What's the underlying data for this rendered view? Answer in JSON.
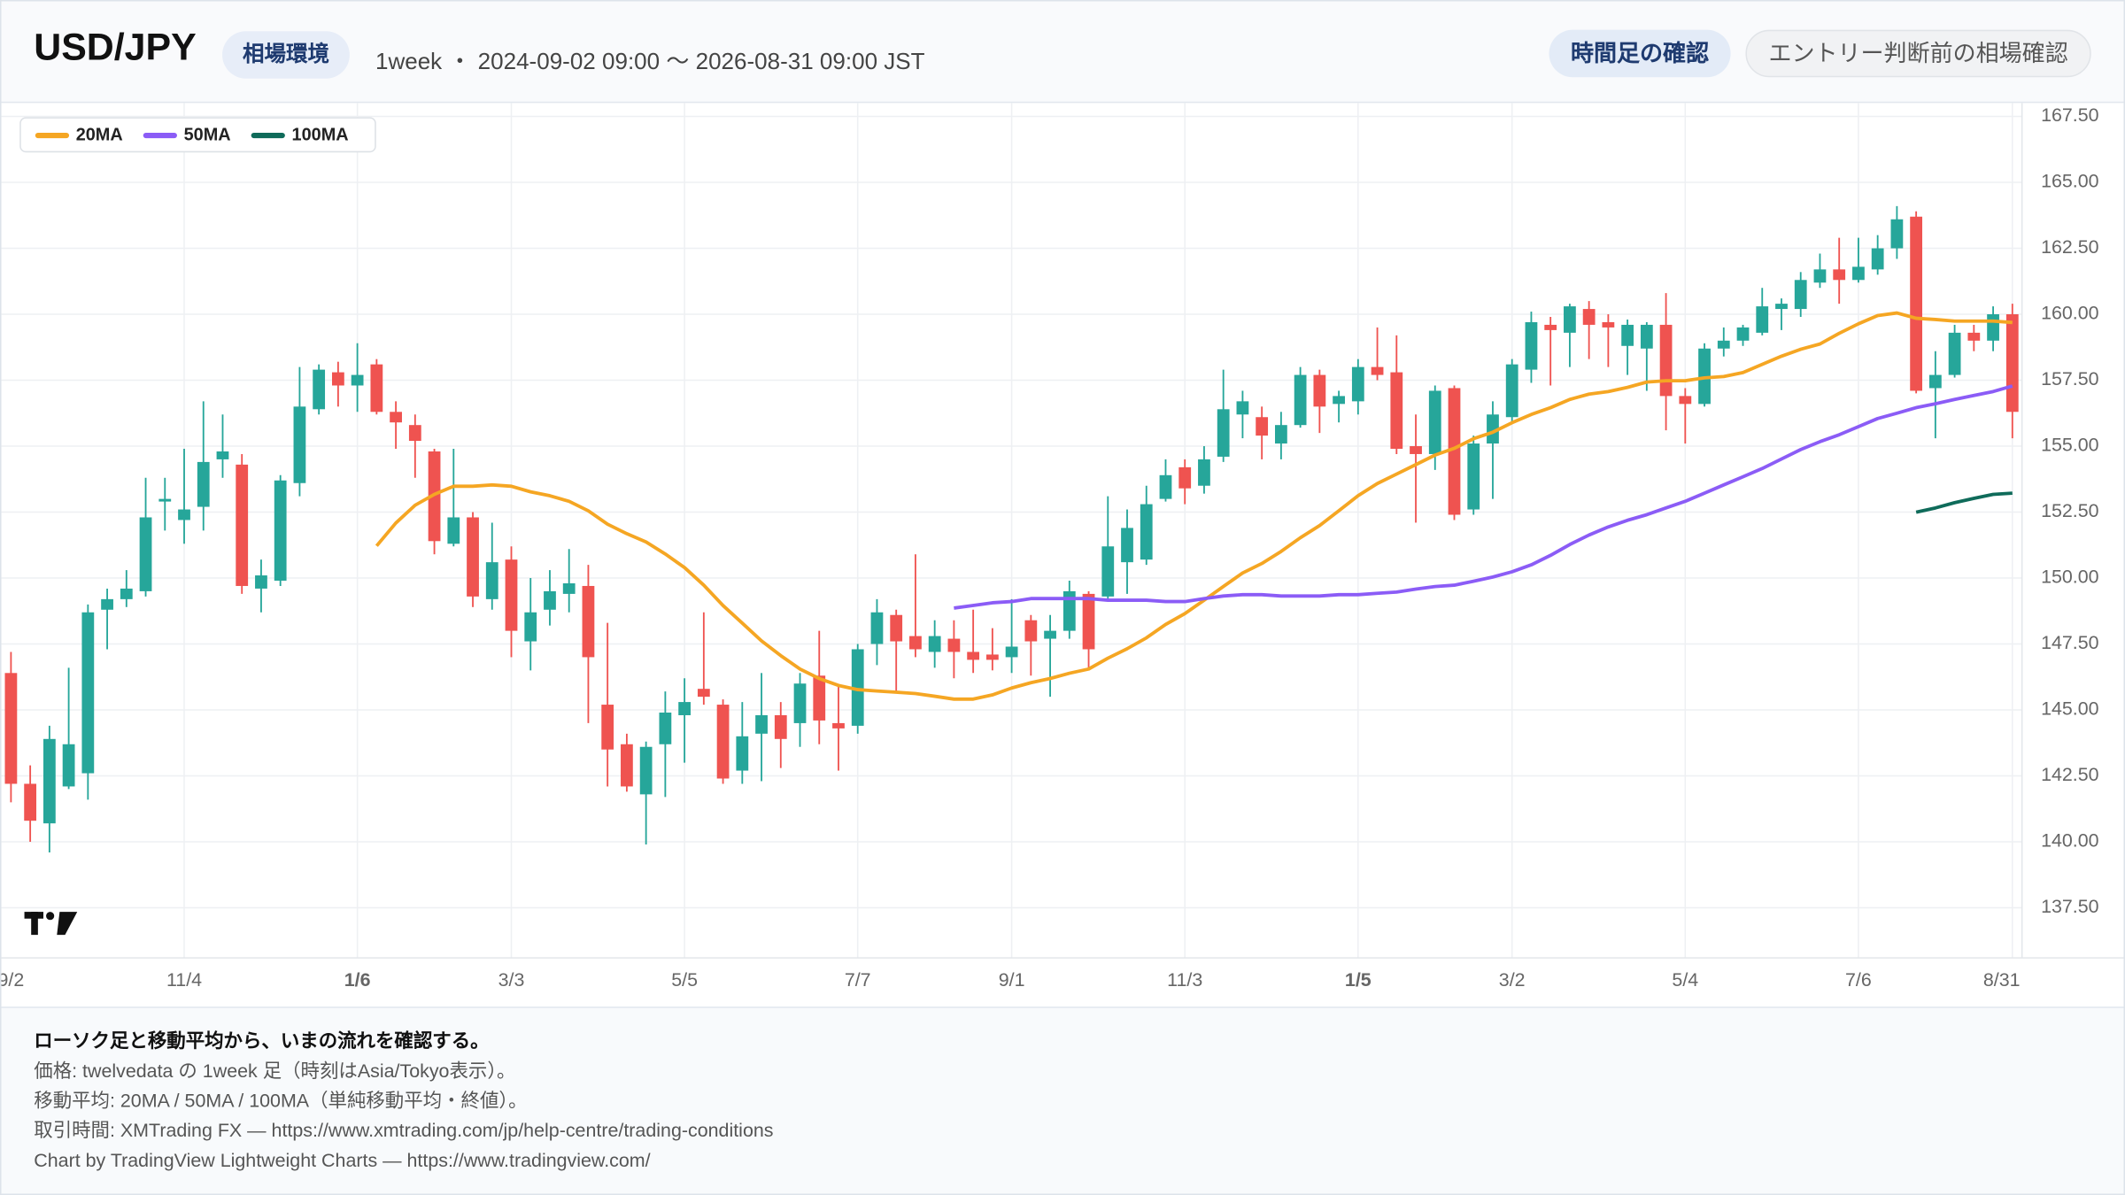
{
  "header": {
    "title": "USD/JPY",
    "badge": "相場環境",
    "range": "1week ・ 2024-09-02 09:00 〜 2026-08-31 09:00 JST",
    "buttons": [
      "時間足の確認",
      "エントリー判断前の相場確認"
    ]
  },
  "footer": {
    "lines": [
      "ローソク足と移動平均から、いまの流れを確認する。",
      "価格: twelvedata の 1week 足（時刻はAsia/Tokyo表示）。",
      "移動平均: 20MA / 50MA / 100MA（単純移動平均・終値）。",
      "取引時間: XMTrading FX — https://www.xmtrading.com/jp/help-centre/trading-conditions",
      "Chart by TradingView Lightweight Charts — https://www.tradingview.com/"
    ]
  },
  "chart_data": {
    "type": "candlestick",
    "up_color": "#26a69a",
    "down_color": "#ef5350",
    "grid": true,
    "categories": [
      "9/2",
      null,
      null,
      null,
      null,
      null,
      null,
      null,
      null,
      "11/4",
      null,
      null,
      null,
      null,
      null,
      null,
      null,
      null,
      "1/6",
      null,
      null,
      null,
      null,
      null,
      null,
      null,
      "3/3",
      null,
      null,
      null,
      null,
      null,
      null,
      null,
      null,
      "5/5",
      null,
      null,
      null,
      null,
      null,
      null,
      null,
      null,
      "7/7",
      null,
      null,
      null,
      null,
      null,
      null,
      null,
      "9/1",
      null,
      null,
      null,
      null,
      null,
      null,
      null,
      null,
      "11/3",
      null,
      null,
      null,
      null,
      null,
      null,
      null,
      null,
      "1/5",
      null,
      null,
      null,
      null,
      null,
      null,
      null,
      "3/2",
      null,
      null,
      null,
      null,
      null,
      null,
      null,
      null,
      "5/4",
      null,
      null,
      null,
      null,
      null,
      null,
      null,
      null,
      "7/6",
      null,
      null,
      null,
      null,
      null,
      null,
      null,
      "8/31"
    ],
    "ohlc": {
      "open": [
        146.4,
        142.2,
        140.7,
        142.1,
        142.6,
        148.8,
        149.2,
        149.5,
        152.9,
        152.2,
        152.7,
        154.5,
        154.3,
        149.6,
        149.9,
        153.6,
        156.4,
        157.8,
        157.3,
        158.1,
        156.3,
        155.8,
        154.8,
        151.3,
        152.3,
        149.2,
        150.7,
        147.6,
        148.8,
        149.4,
        149.7,
        145.2,
        143.7,
        141.8,
        143.7,
        144.8,
        145.8,
        145.2,
        142.7,
        144.1,
        144.8,
        144.5,
        146.3,
        144.5,
        144.4,
        147.5,
        148.6,
        147.8,
        147.2,
        147.7,
        147.2,
        147.1,
        147.0,
        148.4,
        147.7,
        148.0,
        149.4,
        149.3,
        150.6,
        150.7,
        153.0,
        154.2,
        153.5,
        154.6,
        156.2,
        156.1,
        155.1,
        155.8,
        157.7,
        156.6,
        156.7,
        158.0,
        157.8,
        155.0,
        154.7,
        157.2,
        152.6,
        155.1,
        156.1,
        157.9,
        159.6,
        159.3,
        160.2,
        159.7,
        158.8,
        158.7,
        159.6,
        156.9,
        156.6,
        158.7,
        159.0,
        159.3,
        160.2,
        160.2,
        161.2,
        161.7,
        161.3,
        161.7,
        162.5,
        163.7,
        157.2,
        157.7,
        159.3,
        159.0,
        160.0
      ],
      "high": [
        147.2,
        142.9,
        144.4,
        146.6,
        149.0,
        149.6,
        150.3,
        153.8,
        153.8,
        154.9,
        156.7,
        156.2,
        154.7,
        150.7,
        153.9,
        158.0,
        158.1,
        158.2,
        158.9,
        158.3,
        156.7,
        156.2,
        154.9,
        154.9,
        152.5,
        152.1,
        151.2,
        150.0,
        150.3,
        151.1,
        150.5,
        148.3,
        144.1,
        143.8,
        145.7,
        146.2,
        148.7,
        145.4,
        145.3,
        146.4,
        145.3,
        146.4,
        148.0,
        145.9,
        147.5,
        149.2,
        148.8,
        150.9,
        148.4,
        148.4,
        148.8,
        148.1,
        149.2,
        148.6,
        148.6,
        149.9,
        149.5,
        153.1,
        152.6,
        153.5,
        154.5,
        154.5,
        155.0,
        157.9,
        157.1,
        156.5,
        156.3,
        158.0,
        157.9,
        157.1,
        158.3,
        159.5,
        159.2,
        156.2,
        157.3,
        157.3,
        155.4,
        156.7,
        158.3,
        160.1,
        159.9,
        160.4,
        160.5,
        160.0,
        159.8,
        159.7,
        160.8,
        157.2,
        158.9,
        159.5,
        159.6,
        161.0,
        160.6,
        161.6,
        162.3,
        162.9,
        162.9,
        163.0,
        164.1,
        163.9,
        158.6,
        159.6,
        159.6,
        160.3,
        160.4
      ],
      "low": [
        141.5,
        140.0,
        139.6,
        142.0,
        141.6,
        147.3,
        148.9,
        149.3,
        151.8,
        151.3,
        151.8,
        153.8,
        149.4,
        148.7,
        149.7,
        153.1,
        156.2,
        156.5,
        156.3,
        156.2,
        154.9,
        153.8,
        150.9,
        151.2,
        148.9,
        148.8,
        147.0,
        146.5,
        148.2,
        148.7,
        144.5,
        142.1,
        141.9,
        139.9,
        141.7,
        143.0,
        145.2,
        142.2,
        142.2,
        142.3,
        142.8,
        143.6,
        143.7,
        142.7,
        144.1,
        146.7,
        145.7,
        147.0,
        146.6,
        146.2,
        146.4,
        146.5,
        146.4,
        146.3,
        145.5,
        147.7,
        146.6,
        149.2,
        149.4,
        150.5,
        152.9,
        152.8,
        153.2,
        154.4,
        155.3,
        154.5,
        154.5,
        155.7,
        155.5,
        155.9,
        156.2,
        157.5,
        154.7,
        152.1,
        154.1,
        152.2,
        152.4,
        153.0,
        155.9,
        157.4,
        157.3,
        158.0,
        158.3,
        158.0,
        157.7,
        157.1,
        155.6,
        155.1,
        156.5,
        158.4,
        158.8,
        159.2,
        159.4,
        159.9,
        161.0,
        160.4,
        161.2,
        161.5,
        162.1,
        157.0,
        155.3,
        157.6,
        158.6,
        158.6,
        155.3
      ],
      "close": [
        142.2,
        140.8,
        143.9,
        143.7,
        148.7,
        149.2,
        149.6,
        152.3,
        153.0,
        152.6,
        154.4,
        154.8,
        149.7,
        150.1,
        153.7,
        156.5,
        157.9,
        157.3,
        157.7,
        156.3,
        155.9,
        155.2,
        151.4,
        152.3,
        149.3,
        150.6,
        148.0,
        148.7,
        149.5,
        149.8,
        147.0,
        143.5,
        142.1,
        143.6,
        144.9,
        145.3,
        145.5,
        142.4,
        144.0,
        144.8,
        143.9,
        146.0,
        144.6,
        144.3,
        147.3,
        148.7,
        147.6,
        147.3,
        147.8,
        147.2,
        146.9,
        146.9,
        147.4,
        147.6,
        148.0,
        149.5,
        147.3,
        151.2,
        151.9,
        152.8,
        153.9,
        153.4,
        154.5,
        156.4,
        156.7,
        155.4,
        155.8,
        157.7,
        156.5,
        156.9,
        158.0,
        157.7,
        154.9,
        154.7,
        157.1,
        152.4,
        155.1,
        156.2,
        158.1,
        159.7,
        159.4,
        160.3,
        159.6,
        159.5,
        159.6,
        159.6,
        156.9,
        156.6,
        158.7,
        159.0,
        159.5,
        160.3,
        160.4,
        161.3,
        161.7,
        161.3,
        161.8,
        162.5,
        163.6,
        157.1,
        157.7,
        159.3,
        159.0,
        160.0,
        156.3
      ]
    },
    "series": [
      {
        "name": "20MA",
        "color": "#f5a623",
        "values": [
          null,
          null,
          null,
          null,
          null,
          null,
          null,
          null,
          null,
          null,
          null,
          null,
          null,
          null,
          null,
          null,
          null,
          null,
          null,
          151.22,
          152.09,
          152.76,
          153.17,
          153.48,
          153.48,
          153.53,
          153.48,
          153.27,
          153.12,
          152.91,
          152.55,
          152.04,
          151.68,
          151.37,
          150.91,
          150.4,
          149.73,
          148.96,
          148.29,
          147.62,
          147.06,
          146.55,
          146.19,
          145.93,
          145.77,
          145.72,
          145.67,
          145.62,
          145.52,
          145.41,
          145.41,
          145.57,
          145.83,
          146.03,
          146.19,
          146.39,
          146.55,
          146.96,
          147.32,
          147.73,
          148.24,
          148.65,
          149.16,
          149.68,
          150.19,
          150.55,
          151.01,
          151.53,
          151.99,
          152.55,
          153.12,
          153.58,
          153.94,
          154.3,
          154.66,
          154.92,
          155.28,
          155.53,
          155.89,
          156.2,
          156.46,
          156.77,
          156.97,
          157.07,
          157.23,
          157.43,
          157.48,
          157.48,
          157.59,
          157.64,
          157.79,
          158.1,
          158.41,
          158.67,
          158.87,
          159.28,
          159.64,
          159.95,
          160.05,
          159.85,
          159.8,
          159.74,
          159.74,
          159.74,
          159.69
        ]
      },
      {
        "name": "50MA",
        "color": "#8b5cf6",
        "values": [
          null,
          null,
          null,
          null,
          null,
          null,
          null,
          null,
          null,
          null,
          null,
          null,
          null,
          null,
          null,
          null,
          null,
          null,
          null,
          null,
          null,
          null,
          null,
          null,
          null,
          null,
          null,
          null,
          null,
          null,
          null,
          null,
          null,
          null,
          null,
          null,
          null,
          null,
          null,
          null,
          null,
          null,
          null,
          null,
          null,
          null,
          null,
          null,
          null,
          148.86,
          148.96,
          149.06,
          149.11,
          149.22,
          149.22,
          149.22,
          149.22,
          149.16,
          149.16,
          149.16,
          149.11,
          149.11,
          149.22,
          149.32,
          149.37,
          149.37,
          149.32,
          149.32,
          149.32,
          149.37,
          149.37,
          149.42,
          149.47,
          149.58,
          149.68,
          149.73,
          149.88,
          150.04,
          150.24,
          150.5,
          150.86,
          151.27,
          151.63,
          151.94,
          152.19,
          152.4,
          152.66,
          152.91,
          153.22,
          153.53,
          153.84,
          154.15,
          154.51,
          154.87,
          155.17,
          155.43,
          155.74,
          156.05,
          156.25,
          156.46,
          156.61,
          156.77,
          156.92,
          157.07,
          157.28
        ]
      },
      {
        "name": "100MA",
        "color": "#0f6b5a",
        "values": [
          null,
          null,
          null,
          null,
          null,
          null,
          null,
          null,
          null,
          null,
          null,
          null,
          null,
          null,
          null,
          null,
          null,
          null,
          null,
          null,
          null,
          null,
          null,
          null,
          null,
          null,
          null,
          null,
          null,
          null,
          null,
          null,
          null,
          null,
          null,
          null,
          null,
          null,
          null,
          null,
          null,
          null,
          null,
          null,
          null,
          null,
          null,
          null,
          null,
          null,
          null,
          null,
          null,
          null,
          null,
          null,
          null,
          null,
          null,
          null,
          null,
          null,
          null,
          null,
          null,
          null,
          null,
          null,
          null,
          null,
          null,
          null,
          null,
          null,
          null,
          null,
          null,
          null,
          null,
          null,
          null,
          null,
          null,
          null,
          null,
          null,
          null,
          null,
          null,
          null,
          null,
          null,
          null,
          null,
          null,
          null,
          null,
          null,
          null,
          152.5,
          152.66,
          152.86,
          153.02,
          153.17,
          153.22
        ]
      }
    ],
    "ylim": [
      135.6,
      168.01
    ],
    "yticks": [
      {
        "value": 137.5,
        "label": "137.50"
      },
      {
        "value": 140,
        "label": "140.00"
      },
      {
        "value": 142.5,
        "label": "142.50"
      },
      {
        "value": 145,
        "label": "145.00"
      },
      {
        "value": 147.5,
        "label": "147.50"
      },
      {
        "value": 150,
        "label": "150.00"
      },
      {
        "value": 152.5,
        "label": "152.50"
      },
      {
        "value": 155,
        "label": "155.00"
      },
      {
        "value": 157.5,
        "label": "157.50"
      },
      {
        "value": 160,
        "label": "160.00"
      },
      {
        "value": 162.5,
        "label": "162.50"
      },
      {
        "value": 165,
        "label": "165.00"
      },
      {
        "value": 167.5,
        "label": "167.50"
      }
    ]
  }
}
